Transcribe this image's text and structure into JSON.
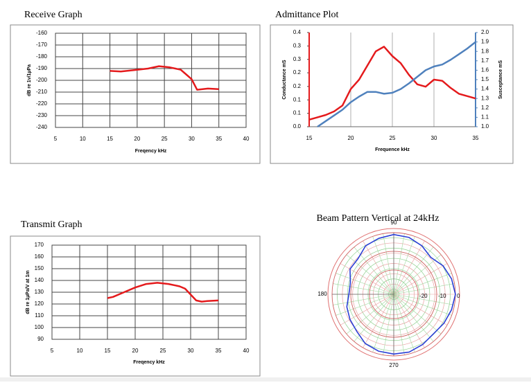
{
  "chart_data": [
    {
      "type": "line",
      "title": "Receive Graph",
      "x_label": "Freqency kHz",
      "y_label": "dB re 1v/1µPa",
      "x": [
        15,
        17,
        20,
        22,
        24,
        26,
        28,
        29,
        30,
        31,
        33,
        35
      ],
      "series": [
        {
          "color": "#e41a1c",
          "values": [
            -192,
            -192.5,
            -191,
            -190,
            -188,
            -189,
            -191,
            -195,
            -199,
            -208,
            -207,
            -207.5
          ]
        }
      ],
      "xlim": [
        5,
        40
      ],
      "xticks": [
        5,
        10,
        15,
        20,
        25,
        30,
        35,
        40
      ],
      "ylim": [
        -240,
        -160
      ],
      "yticks": [
        -240,
        -230,
        -220,
        -210,
        -200,
        -190,
        -180,
        -170,
        -160
      ],
      "grid": true
    },
    {
      "type": "line",
      "title": "Admittance Plot",
      "x_label": "Frequence kHz",
      "y_label": "Conductance mS",
      "y2_label": "Susceptance mS",
      "x": [
        15,
        16,
        17,
        18,
        19,
        20,
        21,
        22,
        23,
        24,
        25,
        26,
        27,
        28,
        29,
        30,
        31,
        32,
        33,
        34,
        35
      ],
      "series": [
        {
          "color": "#e41a1c",
          "values": [
            0.03,
            0.04,
            0.05,
            0.065,
            0.09,
            0.16,
            0.2,
            0.26,
            0.32,
            0.34,
            0.3,
            0.27,
            0.22,
            0.18,
            0.17,
            0.2,
            0.195,
            0.165,
            0.14,
            0.13,
            0.12
          ]
        },
        {
          "color": "#4f81bd",
          "axis": "y2",
          "values": [
            null,
            1.0,
            1.06,
            1.12,
            1.18,
            1.26,
            1.32,
            1.37,
            1.37,
            1.35,
            1.36,
            1.4,
            1.46,
            1.53,
            1.6,
            1.64,
            1.66,
            1.71,
            1.77,
            1.83,
            1.9
          ]
        }
      ],
      "xlim": [
        15,
        35
      ],
      "xticks": [
        15,
        20,
        25,
        30,
        35
      ],
      "ylim": [
        0,
        0.4
      ],
      "yticks": [
        {
          "value": 0,
          "label": "0.0"
        },
        {
          "value": 0.057,
          "label": "0.1"
        },
        {
          "value": 0.114,
          "label": "0.1"
        },
        {
          "value": 0.171,
          "label": "0.2"
        },
        {
          "value": 0.229,
          "label": "0.2"
        },
        {
          "value": 0.286,
          "label": "0.3"
        },
        {
          "value": 0.343,
          "label": "0.3"
        },
        0.4
      ],
      "y2lim": [
        1,
        2
      ],
      "y2ticks": [
        {
          "value": 1,
          "label": "1.0"
        },
        1.1,
        1.2,
        1.3,
        1.4,
        1.5,
        1.6,
        1.7,
        1.8,
        1.9,
        {
          "value": 2,
          "label": "2.0"
        }
      ],
      "grid": "x"
    },
    {
      "type": "line",
      "title": "Transmit Graph",
      "x_label": "Freqency kHz",
      "y_label": "dB re 1µPa/V at 1m",
      "x": [
        15,
        16,
        18,
        20,
        22,
        24,
        26,
        28,
        29,
        30,
        31,
        32,
        33,
        35
      ],
      "series": [
        {
          "color": "#e41a1c",
          "values": [
            125,
            126,
            130,
            134,
            137,
            138,
            137,
            135,
            133,
            128,
            123,
            122,
            122.5,
            123
          ]
        }
      ],
      "xlim": [
        5,
        40
      ],
      "xticks": [
        5,
        10,
        15,
        20,
        25,
        30,
        35,
        40
      ],
      "ylim": [
        90,
        170
      ],
      "yticks": [
        90,
        100,
        110,
        120,
        130,
        140,
        150,
        160,
        170
      ],
      "grid": true
    },
    {
      "type": "polar",
      "title": "Beam Pattern Vertical at 24kHz",
      "theta": [
        0,
        15,
        30,
        45,
        60,
        75,
        90,
        105,
        120,
        135,
        150,
        165,
        180,
        195,
        210,
        225,
        240,
        255,
        270,
        285,
        300,
        315,
        330,
        345
      ],
      "series": [
        {
          "color": "#2b3fd6",
          "values": [
            0,
            -1,
            -2.5,
            -5,
            -3,
            -1.5,
            -1,
            -2,
            -3,
            -6,
            -6,
            -9,
            -9,
            -7,
            -6,
            -5,
            -2.5,
            -1.5,
            -1,
            -1,
            -2,
            -3,
            -2,
            -1
          ]
        }
      ],
      "rlim": [
        -33,
        0
      ],
      "rticks": [
        -20,
        -10,
        0
      ],
      "thetaticks": [
        90,
        180,
        270
      ]
    }
  ]
}
